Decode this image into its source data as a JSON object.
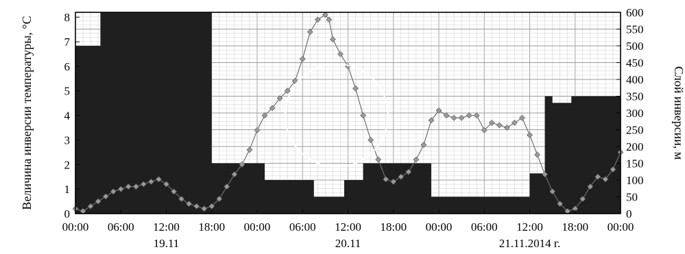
{
  "chart_data": {
    "type": "line",
    "title": "",
    "ylabel_left": "Величина инверсии температуры, °C",
    "ylabel_right": "Слой инверсии, м",
    "ylim_left": [
      0,
      8.2
    ],
    "ylim_right": [
      0,
      600
    ],
    "yticks_left": [
      "0",
      "1",
      "2",
      "3",
      "4",
      "5",
      "6",
      "7",
      "8"
    ],
    "yticks_right": [
      "0",
      "50",
      "100",
      "150",
      "200",
      "250",
      "300",
      "350",
      "400",
      "450",
      "500",
      "550",
      "600"
    ],
    "xlim_hours": [
      0,
      72
    ],
    "xticks": [
      "00:00",
      "06:00",
      "12:00",
      "18:00",
      "00:00",
      "06:00",
      "12:00",
      "18:00",
      "00:00",
      "06:00",
      "12:00",
      "18:00",
      "00:00"
    ],
    "date_labels": [
      "19.11",
      "20.11",
      "21.11.2014 г."
    ],
    "grid": true,
    "legend": "none",
    "series": [
      {
        "kind": "scatter-line",
        "axis": "left",
        "color": "#9a9a9a",
        "x": [
          0,
          1,
          2,
          3,
          4,
          5,
          6,
          7,
          8,
          9,
          10,
          11,
          12,
          13,
          14,
          15,
          16,
          17,
          18,
          19,
          20,
          21,
          22,
          23,
          24,
          25,
          26,
          27,
          28,
          29,
          30,
          31,
          32,
          33,
          33.5,
          34,
          35,
          36,
          37,
          38,
          39,
          40,
          41,
          42,
          43,
          44,
          45,
          46,
          47,
          48,
          49,
          50,
          51,
          52,
          53,
          54,
          55,
          56,
          57,
          58,
          59,
          60,
          61,
          62,
          63,
          64,
          65,
          66,
          67,
          68,
          69,
          70,
          71,
          72
        ],
        "y": [
          0.2,
          0.1,
          0.3,
          0.5,
          0.7,
          0.9,
          1.0,
          1.1,
          1.1,
          1.2,
          1.3,
          1.4,
          1.2,
          0.9,
          0.6,
          0.4,
          0.3,
          0.2,
          0.3,
          0.6,
          1.1,
          1.6,
          2.0,
          2.6,
          3.4,
          4.0,
          4.3,
          4.7,
          5.0,
          5.4,
          6.3,
          7.4,
          7.9,
          8.1,
          7.9,
          7.1,
          6.5,
          6.0,
          5.1,
          4.0,
          3.0,
          2.2,
          1.4,
          1.3,
          1.5,
          1.7,
          2.2,
          2.8,
          3.8,
          4.2,
          4.0,
          3.9,
          3.9,
          4.0,
          4.0,
          3.4,
          3.7,
          3.6,
          3.5,
          3.7,
          3.9,
          3.2,
          2.4,
          1.6,
          0.9,
          0.4,
          0.1,
          0.2,
          0.6,
          1.1,
          1.5,
          1.4,
          1.8,
          2.5
        ]
      },
      {
        "kind": "step-area",
        "axis": "right",
        "color": "#1f1f1f",
        "x": [
          0,
          1.5,
          3.3,
          17.7,
          18,
          25,
          31.5,
          35.5,
          38,
          47,
          60,
          62,
          63,
          65.5,
          72
        ],
        "y": [
          500,
          500,
          600,
          600,
          150,
          100,
          50,
          100,
          150,
          50,
          120,
          350,
          330,
          350,
          380
        ]
      }
    ],
    "annotations": [
      {
        "type": "circle",
        "center_hours": 34.5,
        "center_value_left": 4.0,
        "radius_hours": 6.8
      }
    ]
  }
}
